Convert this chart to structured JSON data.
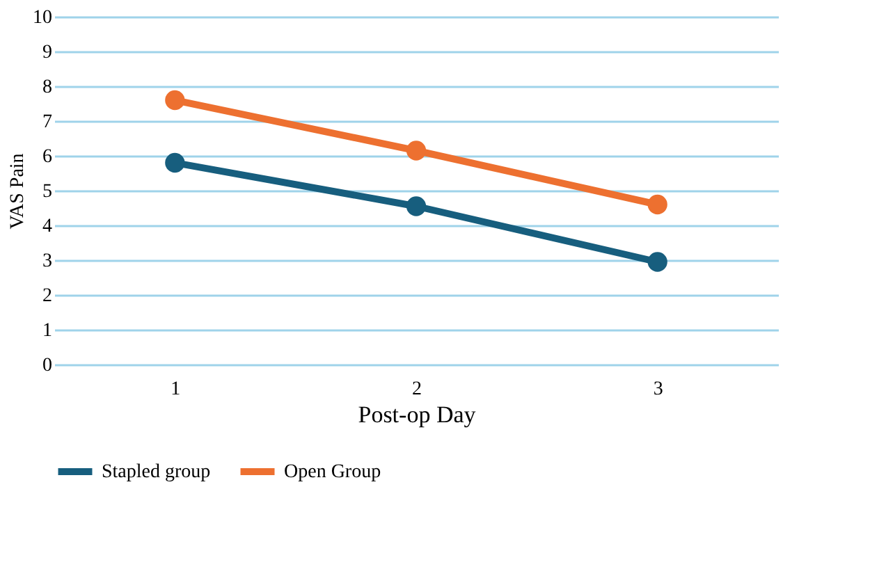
{
  "chart_data": {
    "type": "line",
    "xlabel": "Post-op Day",
    "ylabel": "VAS Pain",
    "categories": [
      "1",
      "2",
      "3"
    ],
    "series": [
      {
        "name": "Stapled group",
        "color": "#175e7e",
        "values": [
          5.8,
          4.55,
          2.95
        ]
      },
      {
        "name": "Open Group",
        "color": "#ed7030",
        "values": [
          7.6,
          6.15,
          4.6
        ]
      }
    ],
    "ylim": [
      0,
      10
    ],
    "yticks": [
      0,
      1,
      2,
      3,
      4,
      5,
      6,
      7,
      8,
      9,
      10
    ],
    "grid": "y",
    "legend": "bottom",
    "marker": "circle",
    "line_style": "solid"
  }
}
